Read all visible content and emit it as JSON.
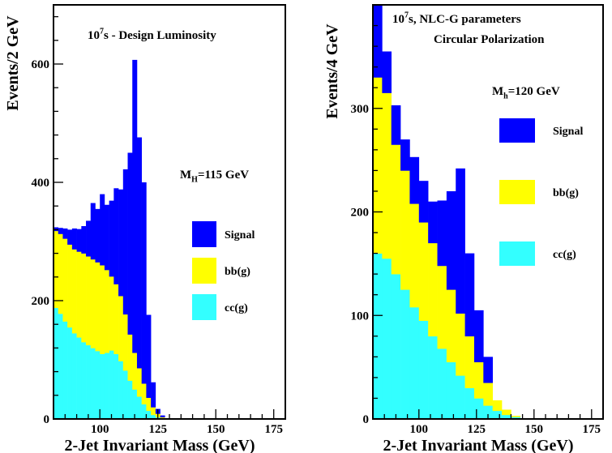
{
  "chart_data": [
    {
      "type": "area",
      "stacked": true,
      "title": "10^7s - Design Luminosity",
      "title_parts": {
        "base": "10",
        "sup": "7",
        "rest": "s - Design Luminosity"
      },
      "annotation": {
        "base": "M",
        "sub": "H",
        "rest": "=115 GeV"
      },
      "xlabel": "2-Jet Invariant Mass (GeV)",
      "ylabel": "Events/2 GeV",
      "xlim": [
        80,
        180
      ],
      "ylim": [
        0,
        700
      ],
      "xticks": [
        "100",
        "125",
        "150",
        "175"
      ],
      "xtick_values": [
        100,
        125,
        150,
        175
      ],
      "yticks": [
        "0",
        "200",
        "400",
        "600"
      ],
      "ytick_values": [
        0,
        200,
        400,
        600
      ],
      "bin_width": 2,
      "x": [
        81,
        83,
        85,
        87,
        89,
        91,
        93,
        95,
        97,
        99,
        101,
        103,
        105,
        107,
        109,
        111,
        113,
        115,
        117,
        119,
        121,
        123,
        125,
        127,
        129,
        131,
        133,
        135,
        137,
        139,
        141,
        143,
        145,
        147,
        149,
        151,
        153,
        155,
        157,
        159,
        161,
        163,
        165,
        167,
        169,
        171,
        173,
        175,
        177,
        179
      ],
      "series": [
        {
          "name": "cc(g)",
          "color": "#33ffff",
          "values": [
            188,
            178,
            165,
            155,
            145,
            138,
            130,
            125,
            120,
            115,
            110,
            112,
            116,
            110,
            98,
            82,
            65,
            50,
            38,
            25,
            14,
            7,
            3,
            1,
            0,
            0,
            0,
            0,
            0,
            0,
            0,
            0,
            0,
            0,
            0,
            0,
            0,
            0,
            0,
            0,
            0,
            0,
            0,
            0,
            0,
            0,
            0,
            0,
            0,
            0
          ]
        },
        {
          "name": "bb(g)",
          "color": "#ffff00",
          "values": [
            130,
            135,
            140,
            140,
            142,
            145,
            150,
            150,
            150,
            150,
            150,
            140,
            125,
            118,
            110,
            95,
            78,
            62,
            48,
            35,
            22,
            13,
            6,
            2,
            1,
            1,
            1,
            1,
            1,
            1,
            1,
            1,
            1,
            1,
            1,
            1,
            1,
            1,
            1,
            1,
            1,
            1,
            1,
            1,
            1,
            1,
            1,
            1,
            1,
            1
          ]
        },
        {
          "name": "Signal",
          "color": "#0000ff",
          "values": [
            6,
            10,
            17,
            25,
            35,
            38,
            46,
            60,
            95,
            90,
            120,
            110,
            128,
            162,
            180,
            245,
            307,
            495,
            390,
            340,
            140,
            42,
            8,
            3,
            0,
            0,
            0,
            0,
            0,
            0,
            0,
            0,
            0,
            0,
            0,
            0,
            0,
            0,
            0,
            0,
            0,
            0,
            0,
            0,
            0,
            0,
            0,
            0,
            0,
            0
          ]
        }
      ]
    },
    {
      "type": "area",
      "stacked": true,
      "title": "10^7s, NLC-G parameters",
      "title_parts": {
        "base": "10",
        "sup": "7",
        "rest": "s, NLC-G parameters"
      },
      "subtitle": "Circular Polarization",
      "annotation": {
        "base": "M",
        "sub": "h",
        "rest": "=120 GeV"
      },
      "xlabel": "2-Jet Invariant Mass (GeV)",
      "ylabel": "Events/4 GeV",
      "xlim": [
        80,
        180
      ],
      "ylim": [
        0,
        400
      ],
      "xticks": [
        "100",
        "125",
        "150",
        "175"
      ],
      "xtick_values": [
        100,
        125,
        150,
        175
      ],
      "yticks": [
        "0",
        "100",
        "200",
        "300"
      ],
      "ytick_values": [
        0,
        100,
        200,
        300
      ],
      "bin_width": 4,
      "x": [
        82,
        86,
        90,
        94,
        98,
        102,
        106,
        110,
        114,
        118,
        122,
        126,
        130,
        134,
        138,
        142,
        146,
        150,
        154,
        158,
        162,
        166,
        170,
        174,
        178
      ],
      "series": [
        {
          "name": "cc(g)",
          "color": "#33ffff",
          "values": [
            160,
            155,
            140,
            125,
            108,
            95,
            80,
            68,
            55,
            42,
            30,
            20,
            13,
            8,
            4,
            2,
            0,
            0,
            0,
            0,
            0,
            0,
            0,
            0,
            0
          ]
        },
        {
          "name": "bb(g)",
          "color": "#ffff00",
          "values": [
            170,
            160,
            125,
            115,
            100,
            95,
            90,
            80,
            70,
            60,
            50,
            35,
            22,
            10,
            5,
            1,
            0,
            0,
            0,
            0,
            0,
            0,
            0,
            0,
            0
          ]
        },
        {
          "name": "Signal",
          "color": "#0000ff",
          "values": [
            75,
            40,
            38,
            30,
            45,
            40,
            40,
            63,
            95,
            140,
            80,
            50,
            25,
            0,
            0,
            0,
            0,
            0,
            0,
            0,
            0,
            0,
            0,
            0,
            0
          ]
        }
      ]
    }
  ],
  "legends": [
    [
      {
        "label": "Signal",
        "color": "#0000ff",
        "text_color": "#0000ff"
      },
      {
        "label": "bb(g)",
        "color": "#ffff00",
        "text_color": "#ffff00"
      },
      {
        "label": "cc(g)",
        "color": "#33ffff",
        "text_color": "#33ffff"
      }
    ],
    [
      {
        "label": "Signal",
        "color": "#0000ff",
        "text_color": "#0000ff"
      },
      {
        "label": "bb(g)",
        "color": "#ffff00",
        "text_color": "#ffff00"
      },
      {
        "label": "cc(g)",
        "color": "#33ffff",
        "text_color": "#33ffff"
      }
    ]
  ]
}
